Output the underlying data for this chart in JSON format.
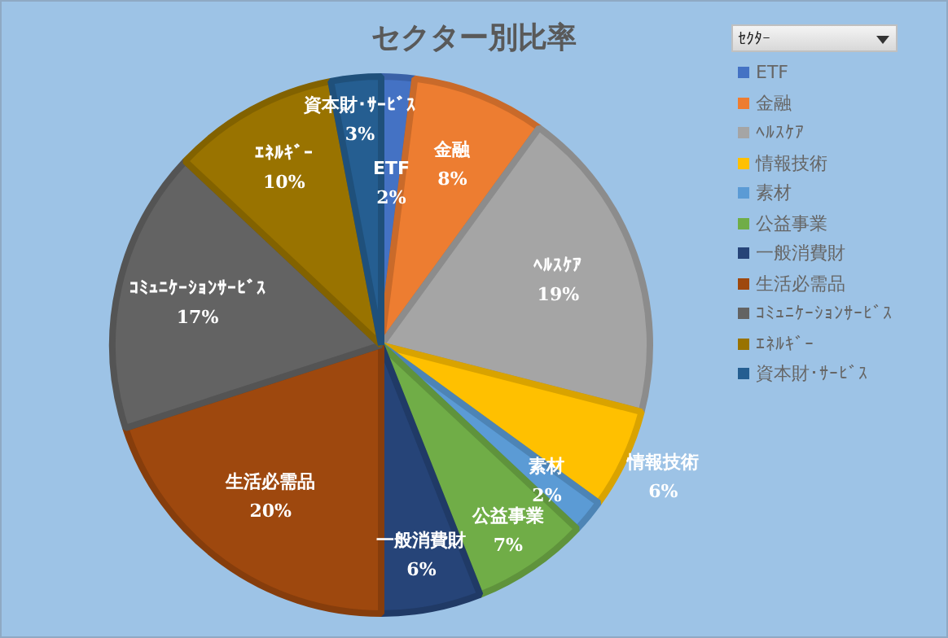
{
  "chart_data": {
    "type": "pie",
    "title": "セクター別比率",
    "legend_title": "ｾｸﾀｰ",
    "legend": "right",
    "categories": [
      "ETF",
      "金融",
      "ﾍﾙｽｹｱ",
      "情報技術",
      "素材",
      "公益事業",
      "一般消費財",
      "生活必需品",
      "ｺﾐｭﾆｹｰｼｮﾝｻｰﾋﾞｽ",
      "ｴﾈﾙｷﾞｰ",
      "資本財･ｻｰﾋﾞｽ"
    ],
    "values": [
      2,
      8,
      19,
      6,
      2,
      7,
      6,
      20,
      17,
      10,
      3
    ],
    "value_labels": [
      "2%",
      "8%",
      "19%",
      "6%",
      "2%",
      "7%",
      "6%",
      "20%",
      "17%",
      "10%",
      "3%"
    ],
    "colors": [
      "#4472c4",
      "#ed7d31",
      "#a5a5a5",
      "#ffc000",
      "#5b9bd5",
      "#70ad47",
      "#264478",
      "#9e480e",
      "#636363",
      "#997300",
      "#255e91"
    ]
  }
}
